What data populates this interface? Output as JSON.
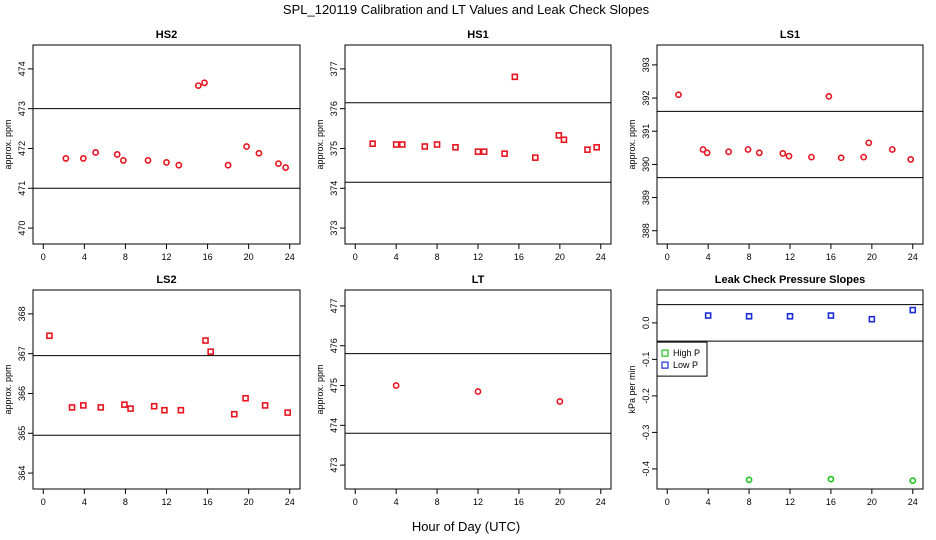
{
  "figure": {
    "title": "SPL_120119  Calibration and LT Values and Leak Check Slopes",
    "xlabel": "Hour of Day (UTC)"
  },
  "colors": {
    "points": "#e8141e",
    "high_p": "#1fc21f",
    "low_p": "#1a2fd9",
    "axes": "#000000"
  },
  "chart_data": [
    {
      "type": "scatter",
      "title": "HS2",
      "ylabel": "approx. ppm",
      "xlim": [
        -1,
        25
      ],
      "ylim": [
        469.6,
        474.6
      ],
      "xticks": [
        0,
        4,
        8,
        12,
        16,
        20,
        24
      ],
      "yticks": [
        470,
        471,
        472,
        473,
        474
      ],
      "ytick_labels": [
        "470",
        "471",
        "472",
        "473",
        "474"
      ],
      "hlines": [
        471.0,
        473.0
      ],
      "marker": "circle",
      "grid": false,
      "series": [
        {
          "color": "#e8141e",
          "x": [
            2.2,
            3.9,
            5.1,
            7.2,
            7.8,
            10.2,
            12.0,
            13.2,
            15.1,
            15.7,
            18.0,
            19.8,
            21.0,
            22.9,
            23.6
          ],
          "y": [
            471.75,
            471.75,
            471.9,
            471.85,
            471.7,
            471.7,
            471.65,
            471.58,
            473.58,
            473.65,
            471.58,
            472.05,
            471.88,
            471.62,
            471.52
          ]
        }
      ]
    },
    {
      "type": "scatter",
      "title": "HS1",
      "ylabel": "approx. ppm",
      "xlim": [
        -1,
        25
      ],
      "ylim": [
        372.6,
        377.6
      ],
      "xticks": [
        0,
        4,
        8,
        12,
        16,
        20,
        24
      ],
      "yticks": [
        373,
        374,
        375,
        376,
        377
      ],
      "ytick_labels": [
        "373",
        "374",
        "375",
        "376",
        "377"
      ],
      "hlines": [
        374.15,
        376.15
      ],
      "marker": "square",
      "grid": false,
      "series": [
        {
          "color": "#e8141e",
          "x": [
            1.7,
            4.0,
            4.6,
            6.8,
            8.0,
            9.8,
            12.0,
            12.6,
            14.6,
            15.6,
            17.6,
            19.9,
            20.4,
            22.7,
            23.6
          ],
          "y": [
            375.12,
            375.1,
            375.1,
            375.05,
            375.1,
            375.03,
            374.92,
            374.92,
            374.87,
            376.8,
            374.77,
            375.33,
            375.22,
            374.97,
            375.03
          ]
        }
      ]
    },
    {
      "type": "scatter",
      "title": "LS1",
      "ylabel": "approx. ppm",
      "xlim": [
        -1,
        25
      ],
      "ylim": [
        387.6,
        393.6
      ],
      "xticks": [
        0,
        4,
        8,
        12,
        16,
        20,
        24
      ],
      "yticks": [
        388,
        389,
        390,
        391,
        392,
        393
      ],
      "ytick_labels": [
        "388",
        "389",
        "390",
        "391",
        "392",
        "393"
      ],
      "hlines": [
        389.6,
        391.6
      ],
      "marker": "circle",
      "grid": false,
      "series": [
        {
          "color": "#e8141e",
          "x": [
            1.1,
            3.5,
            3.9,
            6.0,
            7.9,
            9.0,
            11.3,
            11.9,
            14.1,
            15.8,
            17.0,
            19.2,
            19.7,
            22.0,
            23.8
          ],
          "y": [
            392.1,
            390.45,
            390.35,
            390.38,
            390.45,
            390.35,
            390.33,
            390.25,
            390.22,
            392.05,
            390.2,
            390.22,
            390.65,
            390.45,
            390.15
          ]
        }
      ]
    },
    {
      "type": "scatter",
      "title": "LS2",
      "ylabel": "approx. ppm",
      "xlim": [
        -1,
        25
      ],
      "ylim": [
        363.6,
        368.6
      ],
      "xticks": [
        0,
        4,
        8,
        12,
        16,
        20,
        24
      ],
      "yticks": [
        364,
        365,
        366,
        367,
        368
      ],
      "ytick_labels": [
        "364",
        "365",
        "366",
        "367",
        "368"
      ],
      "hlines": [
        364.95,
        366.95
      ],
      "marker": "square",
      "grid": false,
      "series": [
        {
          "color": "#e8141e",
          "x": [
            0.6,
            2.8,
            3.9,
            5.6,
            7.9,
            8.5,
            10.8,
            11.8,
            13.4,
            15.8,
            16.3,
            18.6,
            19.7,
            21.6,
            23.8
          ],
          "y": [
            367.45,
            365.65,
            365.7,
            365.65,
            365.72,
            365.62,
            365.68,
            365.58,
            365.58,
            367.33,
            367.05,
            365.48,
            365.88,
            365.7,
            365.52
          ]
        }
      ]
    },
    {
      "type": "scatter",
      "title": "LT",
      "ylabel": "approx. ppm",
      "xlim": [
        -1,
        25
      ],
      "ylim": [
        472.4,
        477.4
      ],
      "xticks": [
        0,
        4,
        8,
        12,
        16,
        20,
        24
      ],
      "yticks": [
        473,
        474,
        475,
        476,
        477
      ],
      "ytick_labels": [
        "473",
        "474",
        "475",
        "476",
        "477"
      ],
      "hlines": [
        473.8,
        475.8
      ],
      "marker": "circle",
      "grid": false,
      "series": [
        {
          "color": "#e8141e",
          "x": [
            4.0,
            12.0,
            20.0
          ],
          "y": [
            475.0,
            474.85,
            474.6
          ]
        }
      ]
    },
    {
      "type": "scatter",
      "title": "Leak Check Pressure Slopes",
      "ylabel": "kPa per min",
      "xlim": [
        -1,
        25
      ],
      "ylim": [
        -0.455,
        0.09
      ],
      "xticks": [
        0,
        4,
        8,
        12,
        16,
        20,
        24
      ],
      "yticks": [
        -0.4,
        -0.3,
        -0.2,
        -0.1,
        0.0
      ],
      "ytick_labels": [
        "-0.4",
        "-0.3",
        "-0.2",
        "-0.1",
        "0.0"
      ],
      "hlines": [
        0.05,
        -0.05
      ],
      "marker": "square",
      "grid": false,
      "legend": {
        "placement": "left",
        "entries": [
          {
            "label": "High P",
            "color": "#1fc21f"
          },
          {
            "label": "Low P",
            "color": "#1a2fd9"
          }
        ]
      },
      "series": [
        {
          "name": "High P",
          "color": "#1fc21f",
          "marker": "circle",
          "x": [
            8,
            16,
            24
          ],
          "y": [
            -0.43,
            -0.428,
            -0.432
          ]
        },
        {
          "name": "Low P",
          "color": "#1a2fd9",
          "marker": "square",
          "x": [
            4,
            8,
            12,
            16,
            20,
            24
          ],
          "y": [
            0.02,
            0.018,
            0.018,
            0.02,
            0.01,
            0.035
          ]
        }
      ]
    }
  ]
}
